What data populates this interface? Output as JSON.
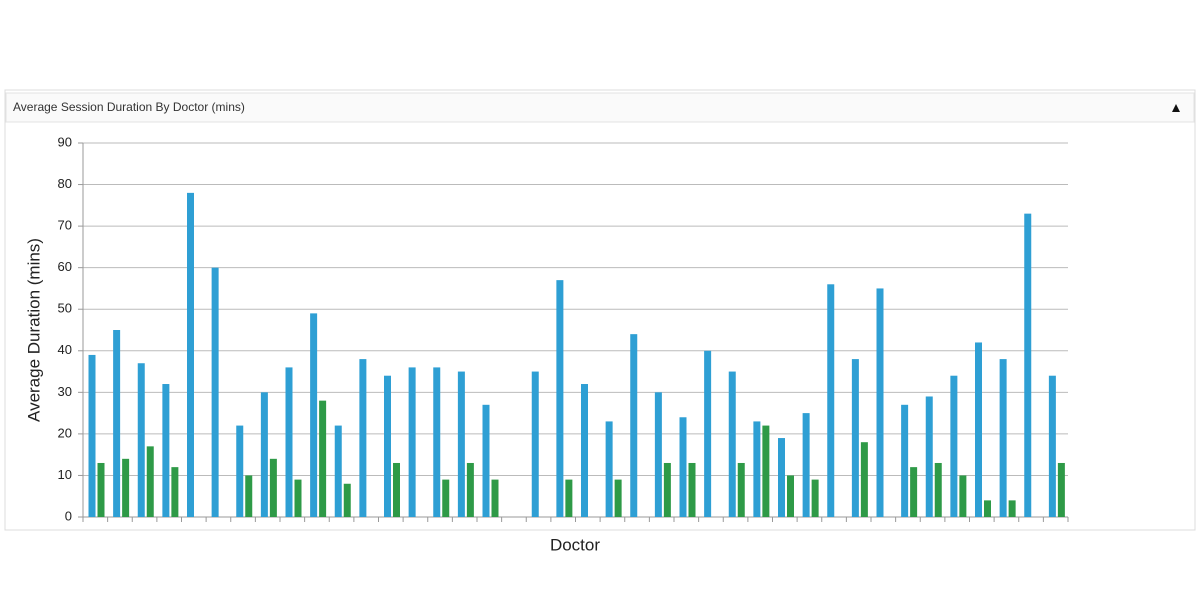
{
  "chart_data": {
    "type": "bar",
    "title": "Average Session Duration By Doctor (mins)",
    "x_label": "Doctor",
    "y_label": "Average Duration (mins)",
    "categories": [
      null,
      null,
      null,
      null,
      null,
      null,
      null,
      null,
      null,
      null,
      null,
      null,
      null,
      null,
      null,
      null,
      null,
      null,
      null,
      null,
      null,
      null,
      null,
      null,
      null,
      null,
      null,
      null,
      null,
      null,
      null,
      null,
      null,
      null,
      null,
      null,
      null,
      null,
      null,
      null
    ],
    "series": [
      {
        "color": "#2e9fd4",
        "values": [
          39,
          45,
          37,
          32,
          78,
          60,
          22,
          30,
          36,
          49,
          22,
          38,
          34,
          36,
          36,
          35,
          27,
          null,
          35,
          57,
          32,
          23,
          44,
          30,
          24,
          40,
          35,
          23,
          19,
          25,
          56,
          38,
          55,
          27,
          29,
          34,
          42,
          38,
          73,
          34
        ]
      },
      {
        "color": "#2e9a47",
        "values": [
          13,
          14,
          17,
          12,
          null,
          null,
          10,
          14,
          9,
          28,
          8,
          null,
          13,
          null,
          9,
          13,
          9,
          null,
          null,
          9,
          null,
          9,
          null,
          13,
          13,
          null,
          13,
          22,
          10,
          9,
          null,
          18,
          null,
          12,
          13,
          10,
          4,
          4,
          null,
          13
        ]
      }
    ],
    "ylim": [
      0,
      90
    ],
    "yticks": [
      0,
      10,
      20,
      30,
      40,
      50,
      60,
      70,
      80,
      90
    ],
    "grid": true
  }
}
